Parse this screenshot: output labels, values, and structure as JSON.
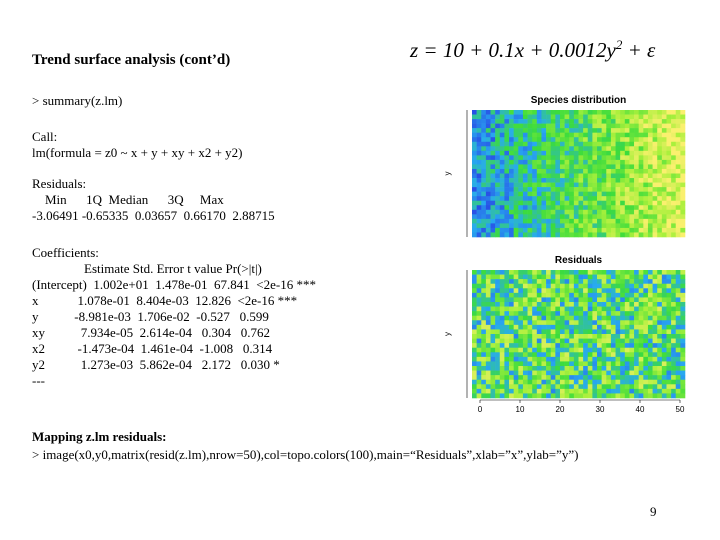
{
  "title": "Trend surface analysis (cont’d)",
  "formula": {
    "main": "z = 10 + 0.1x + 0.0012y",
    "sup": "2",
    "tail": " + ε"
  },
  "summary_call": "> summary(z.lm)",
  "call": [
    "Call:",
    "lm(formula = z0 ~ x + y + xy + x2 + y2)"
  ],
  "residuals": [
    "Residuals:",
    "    Min      1Q  Median      3Q     Max",
    "-3.06491 -0.65335  0.03657  0.66170  2.88715"
  ],
  "coefficients": [
    "Coefficients:",
    "                Estimate Std. Error t value Pr(>|t|)",
    "(Intercept)  1.002e+01  1.478e-01  67.841  <2e-16 ***",
    "x            1.078e-01  8.404e-03  12.826  <2e-16 ***",
    "y           -8.981e-03  1.706e-02  -0.527   0.599",
    "xy           7.934e-05  2.614e-04   0.304   0.762",
    "x2          -1.473e-04  1.461e-04  -1.008   0.314",
    "y2           1.273e-03  5.862e-04   2.172   0.030 *",
    "---"
  ],
  "mapping_heading": "Mapping z.lm residuals:",
  "mapping_command": "> image(x0,y0,matrix(resid(z.lm),nrow=50),col=topo.colors(100),main=“Residuals”,xlab=”x”,ylab=”y”)",
  "plots": [
    {
      "title": "Species distribution",
      "ylabel": "y"
    },
    {
      "title": "Residuals",
      "ylabel": "y",
      "xticks": [
        "0",
        "10",
        "20",
        "30",
        "40",
        "50"
      ]
    }
  ],
  "page_number": "9"
}
